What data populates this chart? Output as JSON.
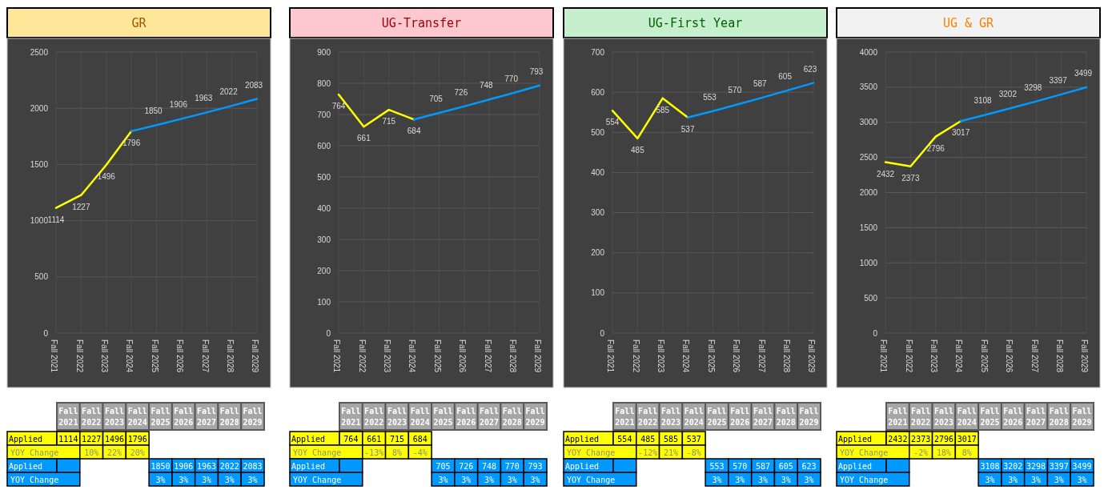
{
  "chart_data": [
    {
      "type": "line",
      "title": "GR",
      "categories": [
        "Fall 2021",
        "Fall 2022",
        "Fall 2023",
        "Fall 2024",
        "Fall 2025",
        "Fall 2026",
        "Fall 2027",
        "Fall 2028",
        "Fall 2029"
      ],
      "ylim": [
        0,
        2500
      ],
      "yticks": [
        0,
        500,
        1000,
        1500,
        2000,
        2500
      ],
      "grid": true,
      "series": [
        {
          "name": "Applied",
          "color": "#ffff00",
          "values": [
            1114,
            1227,
            1496,
            1796,
            null,
            null,
            null,
            null,
            null
          ],
          "value_labels": [
            "1114",
            "1227",
            "1496",
            "1796",
            null,
            null,
            null,
            null,
            null
          ]
        },
        {
          "name": "Applied",
          "color": "#0099ff",
          "values": [
            null,
            null,
            null,
            1796,
            1850,
            1906,
            1963,
            2022,
            2083
          ],
          "value_labels": [
            null,
            null,
            null,
            null,
            "1850",
            "1906",
            "1963",
            "2022",
            "2083"
          ]
        }
      ],
      "annotations": [
        "YOY Change",
        "10%",
        "22%",
        "20%",
        "YOY Change",
        "3%",
        "3%",
        "3%",
        "3%",
        "3%"
      ]
    },
    {
      "type": "line",
      "title": "UG-Transfer",
      "categories": [
        "Fall 2021",
        "Fall 2022",
        "Fall 2023",
        "Fall 2024",
        "Fall 2025",
        "Fall 2026",
        "Fall 2027",
        "Fall 2028",
        "Fall 2029"
      ],
      "ylim": [
        0,
        900
      ],
      "yticks": [
        0,
        100,
        200,
        300,
        400,
        500,
        600,
        700,
        800,
        900
      ],
      "grid": true,
      "series": [
        {
          "name": "Applied",
          "color": "#ffff00",
          "values": [
            764,
            661,
            715,
            684,
            null,
            null,
            null,
            null,
            null
          ],
          "value_labels": [
            "764",
            "661",
            "715",
            "684",
            null,
            null,
            null,
            null,
            null
          ]
        },
        {
          "name": "Applied",
          "color": "#0099ff",
          "values": [
            null,
            null,
            null,
            684,
            705,
            726,
            748,
            770,
            793
          ],
          "value_labels": [
            null,
            null,
            null,
            null,
            "705",
            "726",
            "748",
            "770",
            "793"
          ]
        }
      ],
      "annotations": [
        "YOY Change",
        "-13%",
        "8%",
        "-4%",
        "YOY Change",
        "3%",
        "3%",
        "3%",
        "3%",
        "3%"
      ]
    },
    {
      "type": "line",
      "title": "UG-First Year",
      "categories": [
        "Fall 2021",
        "Fall 2022",
        "Fall 2023",
        "Fall 2024",
        "Fall 2025",
        "Fall 2026",
        "Fall 2027",
        "Fall 2028",
        "Fall 2029"
      ],
      "ylim": [
        0,
        700
      ],
      "yticks": [
        0,
        100,
        200,
        300,
        400,
        500,
        600,
        700
      ],
      "grid": true,
      "series": [
        {
          "name": "Applied",
          "color": "#ffff00",
          "values": [
            554,
            485,
            585,
            537,
            null,
            null,
            null,
            null,
            null
          ],
          "value_labels": [
            "554",
            "485",
            "585",
            "537",
            null,
            null,
            null,
            null,
            null
          ]
        },
        {
          "name": "Applied",
          "color": "#0099ff",
          "values": [
            null,
            null,
            null,
            537,
            553,
            570,
            587,
            605,
            623
          ],
          "value_labels": [
            null,
            null,
            null,
            null,
            "553",
            "570",
            "587",
            "605",
            "623"
          ]
        }
      ],
      "annotations": [
        "YOY Change",
        "-12%",
        "21%",
        "-8%",
        "YOY Change",
        "3%",
        "3%",
        "3%",
        "3%",
        "3%"
      ]
    },
    {
      "type": "line",
      "title": "UG & GR",
      "categories": [
        "Fall 2021",
        "Fall 2022",
        "Fall 2023",
        "Fall 2024",
        "Fall 2025",
        "Fall 2026",
        "Fall 2027",
        "Fall 2028",
        "Fall 2029"
      ],
      "ylim": [
        0,
        4000
      ],
      "yticks": [
        0,
        500,
        1000,
        1500,
        2000,
        2500,
        3000,
        3500,
        4000
      ],
      "grid": true,
      "series": [
        {
          "name": "Applied",
          "color": "#ffff00",
          "values": [
            2432,
            2373,
            2796,
            3017,
            null,
            null,
            null,
            null,
            null
          ],
          "value_labels": [
            "2432",
            "2373",
            "2796",
            "3017",
            null,
            null,
            null,
            null,
            null
          ]
        },
        {
          "name": "Applied",
          "color": "#0099ff",
          "values": [
            null,
            null,
            null,
            3017,
            3108,
            3202,
            3298,
            3397,
            3499
          ],
          "value_labels": [
            null,
            null,
            null,
            null,
            "3108",
            "3202",
            "3298",
            "3397",
            "3499"
          ]
        }
      ],
      "annotations": [
        "YOY Change",
        "-2%",
        "18%",
        "8%",
        "YOY Change",
        "3%",
        "3%",
        "3%",
        "3%",
        "3%"
      ]
    }
  ]
}
